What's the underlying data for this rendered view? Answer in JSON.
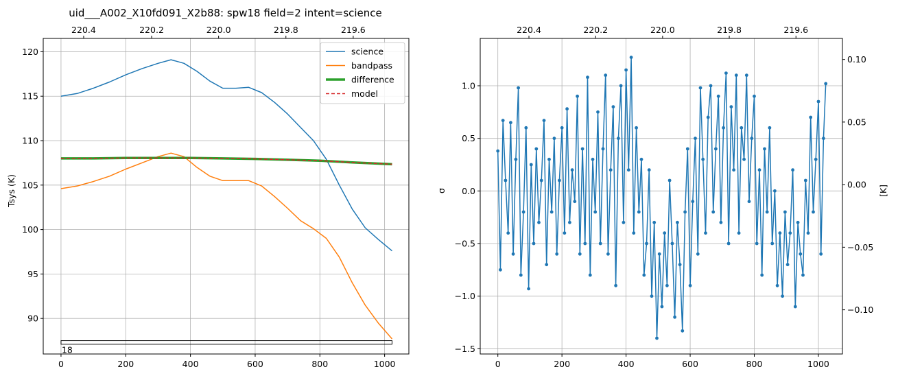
{
  "chart_data": [
    {
      "type": "line",
      "title": "uid___A002_X10fd091_X2b88: spw18 field=2 intent=science",
      "xlabel": "",
      "ylabel": "Tsys (K)",
      "xlim": [
        -55,
        1075
      ],
      "ylim": [
        86.0,
        121.5
      ],
      "x_ticks": [
        0,
        200,
        400,
        600,
        800,
        1000
      ],
      "y_ticks": [
        90,
        95,
        100,
        105,
        110,
        115,
        120
      ],
      "top_axis_ticks": [
        "220.4",
        "220.2",
        "220.0",
        "219.8",
        "219.6"
      ],
      "top_axis_ticks_x": [
        70,
        280,
        487,
        695,
        903
      ],
      "grid": true,
      "legend_position": "upper right",
      "series": [
        {
          "name": "science",
          "color": "#1f77b4",
          "style": "solid",
          "width": 1.5,
          "x": [
            0,
            50,
            100,
            150,
            200,
            250,
            300,
            340,
            380,
            420,
            460,
            500,
            540,
            580,
            620,
            660,
            700,
            740,
            780,
            820,
            860,
            900,
            940,
            980,
            1023
          ],
          "y": [
            115.0,
            115.3,
            115.9,
            116.6,
            117.4,
            118.1,
            118.7,
            119.1,
            118.7,
            117.8,
            116.7,
            115.9,
            115.9,
            116.0,
            115.4,
            114.3,
            113.0,
            111.5,
            110.0,
            107.9,
            105.0,
            102.3,
            100.2,
            98.9,
            97.6
          ]
        },
        {
          "name": "bandpass",
          "color": "#ff7f0e",
          "style": "solid",
          "width": 1.5,
          "x": [
            0,
            50,
            100,
            150,
            200,
            250,
            300,
            340,
            380,
            420,
            460,
            500,
            540,
            580,
            620,
            660,
            700,
            740,
            780,
            820,
            860,
            900,
            940,
            980,
            1023
          ],
          "y": [
            104.6,
            104.9,
            105.4,
            106.0,
            106.8,
            107.5,
            108.2,
            108.6,
            108.2,
            107.0,
            106.0,
            105.5,
            105.5,
            105.5,
            104.9,
            103.7,
            102.4,
            101.0,
            100.1,
            99.0,
            96.9,
            94.0,
            91.5,
            89.5,
            87.7
          ]
        },
        {
          "name": "difference",
          "color": "#2ca02c",
          "style": "solid",
          "width": 3.5,
          "x": [
            0,
            100,
            200,
            300,
            400,
            500,
            600,
            700,
            800,
            900,
            1023
          ],
          "y": [
            108.0,
            108.0,
            108.05,
            108.05,
            108.05,
            108.0,
            107.95,
            107.85,
            107.75,
            107.55,
            107.35
          ]
        },
        {
          "name": "model",
          "color": "#d62728",
          "style": "dashed",
          "width": 1.5,
          "x": [
            0,
            100,
            200,
            300,
            400,
            500,
            600,
            700,
            800,
            900,
            1023
          ],
          "y": [
            108.0,
            108.0,
            108.05,
            108.05,
            108.05,
            108.0,
            107.95,
            107.85,
            107.75,
            107.55,
            107.35
          ]
        }
      ],
      "annotation": {
        "label": "18",
        "x_start": 0,
        "x_end": 1023,
        "y_top": 87.5,
        "y_bottom": 87.1
      }
    },
    {
      "type": "line",
      "title": "",
      "xlabel": "",
      "ylabel": "σ",
      "ylabel_right": "[K]",
      "xlim": [
        -55,
        1075
      ],
      "ylim": [
        -1.55,
        1.45
      ],
      "x_ticks": [
        0,
        200,
        400,
        600,
        800,
        1000
      ],
      "y_ticks": [
        -1.5,
        -1.0,
        -0.5,
        0.0,
        0.5,
        1.0
      ],
      "y_tick_labels": [
        "−1.5",
        "−1.0",
        "−0.5",
        "0.0",
        "0.5",
        "1.0"
      ],
      "right_y_ticks": [
        "0.10",
        "0.05",
        "0.00",
        "−0.05",
        "−0.10"
      ],
      "right_y_ticks_sigma": [
        1.25,
        0.655,
        0.06,
        -0.535,
        -1.13
      ],
      "top_axis_ticks": [
        "220.4",
        "220.2",
        "220.0",
        "219.8",
        "219.6"
      ],
      "top_axis_ticks_x": [
        97,
        305,
        514,
        722,
        930
      ],
      "grid": true,
      "series": [
        {
          "color": "#1f77b4",
          "markers": true,
          "x": [
            0,
            8,
            16,
            24,
            32,
            40,
            48,
            56,
            64,
            72,
            80,
            88,
            96,
            104,
            112,
            120,
            128,
            136,
            144,
            152,
            160,
            168,
            176,
            184,
            192,
            200,
            208,
            216,
            224,
            232,
            240,
            248,
            256,
            264,
            272,
            280,
            288,
            296,
            304,
            312,
            320,
            328,
            336,
            344,
            352,
            360,
            368,
            376,
            384,
            392,
            400,
            408,
            416,
            424,
            432,
            440,
            448,
            456,
            464,
            472,
            480,
            488,
            496,
            504,
            512,
            520,
            528,
            536,
            544,
            552,
            560,
            568,
            576,
            584,
            592,
            600,
            608,
            616,
            624,
            632,
            640,
            648,
            656,
            664,
            672,
            680,
            688,
            696,
            704,
            712,
            720,
            728,
            736,
            744,
            752,
            760,
            768,
            776,
            784,
            792,
            800,
            808,
            816,
            824,
            832,
            840,
            848,
            856,
            864,
            872,
            880,
            888,
            896,
            904,
            912,
            920,
            928,
            936,
            944,
            952,
            960,
            968,
            976,
            984,
            992,
            1000,
            1008,
            1016,
            1023
          ],
          "y": [
            0.38,
            -0.75,
            0.67,
            0.1,
            -0.4,
            0.65,
            -0.6,
            0.3,
            0.98,
            -0.8,
            -0.2,
            0.6,
            -0.93,
            0.25,
            -0.5,
            0.4,
            -0.3,
            0.1,
            0.67,
            -0.7,
            0.3,
            -0.2,
            0.5,
            -0.6,
            0.1,
            0.6,
            -0.4,
            0.78,
            -0.3,
            0.2,
            -0.1,
            0.9,
            -0.6,
            0.4,
            -0.5,
            1.08,
            -0.8,
            0.3,
            -0.2,
            0.75,
            -0.5,
            0.4,
            1.1,
            -0.6,
            0.2,
            0.8,
            -0.9,
            0.5,
            1.0,
            -0.3,
            1.15,
            0.2,
            1.27,
            -0.4,
            0.6,
            -0.2,
            0.3,
            -0.8,
            -0.5,
            0.2,
            -1.0,
            -0.3,
            -1.4,
            -0.6,
            -1.1,
            -0.4,
            -0.9,
            0.1,
            -0.5,
            -1.2,
            -0.3,
            -0.7,
            -1.33,
            -0.2,
            0.4,
            -0.9,
            -0.1,
            0.5,
            -0.6,
            0.98,
            0.3,
            -0.4,
            0.7,
            1.0,
            -0.2,
            0.4,
            0.9,
            -0.3,
            0.6,
            1.12,
            -0.5,
            0.8,
            0.2,
            1.1,
            -0.4,
            0.6,
            0.3,
            1.1,
            -0.1,
            0.5,
            0.9,
            -0.5,
            0.2,
            -0.8,
            0.4,
            -0.2,
            0.6,
            -0.5,
            0.0,
            -0.9,
            -0.4,
            -1.0,
            -0.2,
            -0.7,
            -0.4,
            0.2,
            -1.1,
            -0.3,
            -0.6,
            -0.8,
            0.1,
            -0.4,
            0.7,
            -0.2,
            0.3,
            0.85,
            -0.6,
            0.5,
            1.02
          ]
        }
      ]
    }
  ]
}
